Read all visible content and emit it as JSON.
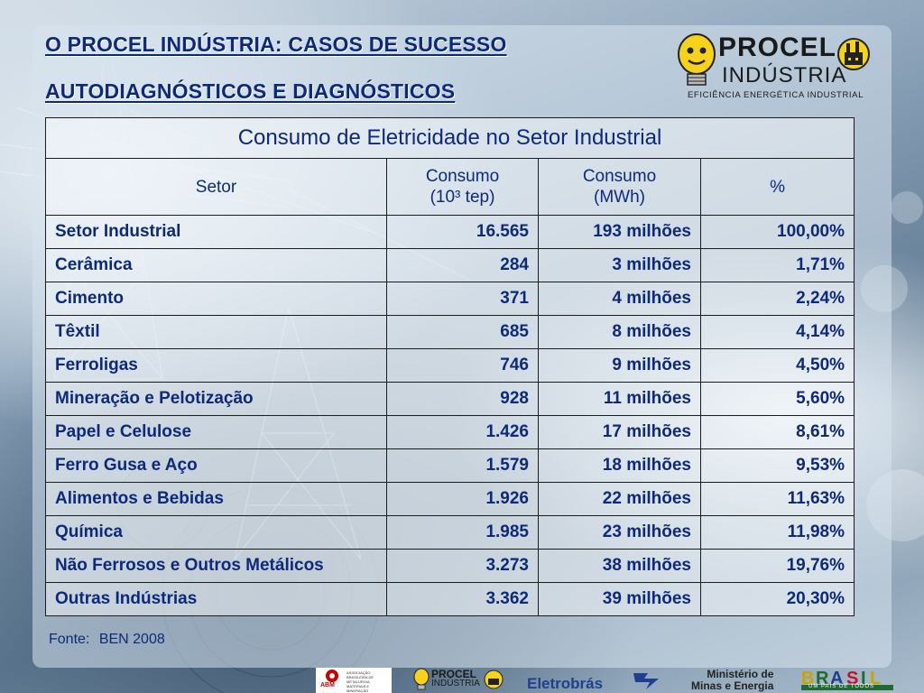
{
  "header": {
    "title_line1": "O PROCEL INDÚSTRIA: CASOS DE SUCESSO",
    "title_line2": "AUTODIAGNÓSTICOS E DIAGNÓSTICOS"
  },
  "logo": {
    "brand": "PROCEL",
    "sub": "INDÚSTRIA",
    "tagline": "EFICIÊNCIA ENERGÉTICA INDUSTRIAL"
  },
  "table": {
    "caption": "Consumo de Eletricidade no Setor Industrial",
    "headers": {
      "setor": "Setor",
      "consumo_tep_line1": "Consumo",
      "consumo_tep_line2": "(10³ tep)",
      "consumo_mwh_line1": "Consumo",
      "consumo_mwh_line2": "(MWh)",
      "percent": "%"
    },
    "rows": [
      {
        "setor": "Setor Industrial",
        "tep": "16.565",
        "mwh": "193 milhões",
        "pct": "100,00%"
      },
      {
        "setor": "Cerâmica",
        "tep": "284",
        "mwh": "3 milhões",
        "pct": "1,71%"
      },
      {
        "setor": "Cimento",
        "tep": "371",
        "mwh": "4 milhões",
        "pct": "2,24%"
      },
      {
        "setor": "Têxtil",
        "tep": "685",
        "mwh": "8 milhões",
        "pct": "4,14%"
      },
      {
        "setor": "Ferroligas",
        "tep": "746",
        "mwh": "9 milhões",
        "pct": "4,50%"
      },
      {
        "setor": "Mineração e Pelotização",
        "tep": "928",
        "mwh": "11 milhões",
        "pct": "5,60%"
      },
      {
        "setor": "Papel e Celulose",
        "tep": "1.426",
        "mwh": "17 milhões",
        "pct": "8,61%"
      },
      {
        "setor": "Ferro Gusa e Aço",
        "tep": "1.579",
        "mwh": "18 milhões",
        "pct": "9,53%"
      },
      {
        "setor": "Alimentos e Bebidas",
        "tep": "1.926",
        "mwh": "22 milhões",
        "pct": "11,63%"
      },
      {
        "setor": "Química",
        "tep": "1.985",
        "mwh": "23 milhões",
        "pct": "11,98%"
      },
      {
        "setor": "Não Ferrosos e Outros Metálicos",
        "tep": "3.273",
        "mwh": "38 milhões",
        "pct": "19,76%"
      },
      {
        "setor": "Outras Indústrias",
        "tep": "3.362",
        "mwh": "39 milhões",
        "pct": "20,30%"
      }
    ]
  },
  "source": {
    "label": "Fonte:",
    "value": "BEN 2008"
  },
  "footer": {
    "abm": "ABM",
    "abm_desc": "ASSOCIAÇÃO BRASILEIRA DE METALURGIA, MATERIAIS E MINERAÇÃO",
    "procel_brand": "PROCEL",
    "procel_sub": "INDÚSTRIA",
    "eletrobras": "Eletrobrás",
    "ministerio_line1": "Ministério de",
    "ministerio_line2": "Minas e Energia",
    "brasil": "BRASIL",
    "brasil_slogan": "UM PAÍS DE TODOS"
  },
  "colors": {
    "title": "#0d2a7a",
    "table_text": "#0d2a7a",
    "border": "#1b1b1b"
  }
}
